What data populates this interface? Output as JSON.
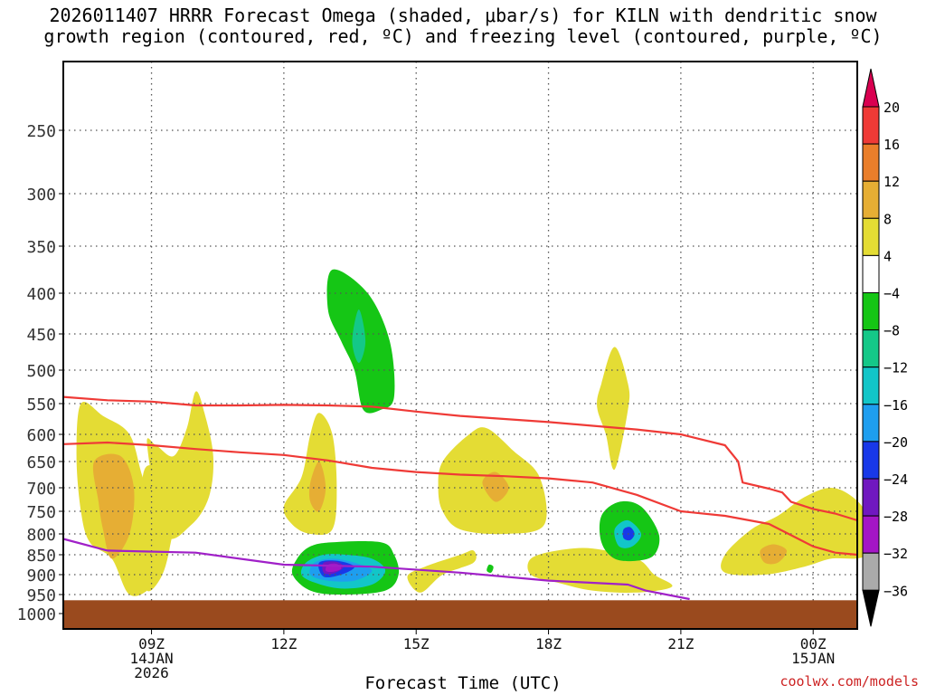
{
  "title": {
    "line1": "2026011407 HRRR Forecast Omega (shaded, μbar/s) for KILN with dendritic snow",
    "line2": "growth region (contoured, red, ºC) and freezing level (contoured, purple, ºC)"
  },
  "credit": "coolwx.com/models",
  "chart_data": {
    "type": "heatmap",
    "title": "2026011407 HRRR Forecast Omega (shaded, μbar/s) for KILN with dendritic snow growth region (contoured, red, ºC) and freezing level (contoured, purple, ºC)",
    "xlabel": "Forecast Time (UTC)",
    "ylabel": "",
    "x_unit": "hours after 07Z 14JAN",
    "xlim": [
      0,
      18
    ],
    "ylim_hpa": [
      1000,
      200
    ],
    "y_ticks": [
      250,
      300,
      350,
      400,
      450,
      500,
      550,
      600,
      650,
      700,
      750,
      800,
      850,
      900,
      950,
      1000
    ],
    "x_ticks": [
      {
        "x": 2,
        "label": "09Z",
        "sub": "14JAN",
        "sub2": "2026"
      },
      {
        "x": 5,
        "label": "12Z",
        "sub": "",
        "sub2": ""
      },
      {
        "x": 8,
        "label": "15Z",
        "sub": "",
        "sub2": ""
      },
      {
        "x": 11,
        "label": "18Z",
        "sub": "",
        "sub2": ""
      },
      {
        "x": 14,
        "label": "21Z",
        "sub": "",
        "sub2": ""
      },
      {
        "x": 17,
        "label": "00Z",
        "sub": "15JAN",
        "sub2": ""
      }
    ],
    "colorbar": {
      "levels": [
        "20",
        "16",
        "12",
        "8",
        "4",
        "−4",
        "−8",
        "−12",
        "−16",
        "−20",
        "−24",
        "−28",
        "−32",
        "−36"
      ],
      "colors": [
        "#d90050",
        "#ef3a36",
        "#ea7e2a",
        "#e6ae34",
        "#e4dc34",
        "#ffffff",
        "#15c615",
        "#14c888",
        "#12c6c8",
        "#1e9eef",
        "#1838e8",
        "#7018c0",
        "#a416c6",
        "#aaaaaa",
        "#000000"
      ]
    },
    "omega_features": [
      {
        "p": [
          [
            0.4,
            550
          ],
          [
            0.9,
            570
          ],
          [
            1.5,
            600
          ],
          [
            1.8,
            680
          ],
          [
            2.2,
            780
          ],
          [
            2.3,
            860
          ],
          [
            2,
            930
          ],
          [
            1.5,
            950
          ],
          [
            1.1,
            860
          ],
          [
            0.6,
            820
          ],
          [
            0.4,
            750
          ],
          [
            0.3,
            640
          ]
        ],
        "color": "#e4dc34"
      },
      {
        "p": [
          [
            0.7,
            650
          ],
          [
            1.3,
            640
          ],
          [
            1.6,
            700
          ],
          [
            1.5,
            800
          ],
          [
            1.1,
            860
          ],
          [
            0.9,
            790
          ],
          [
            0.8,
            730
          ]
        ],
        "color": "#e6ae34"
      },
      {
        "p": [
          [
            1.9,
            620
          ],
          [
            2.3,
            800
          ],
          [
            2.9,
            780
          ],
          [
            3.3,
            720
          ],
          [
            3.4,
            640
          ],
          [
            3.2,
            565
          ],
          [
            3,
            532
          ],
          [
            2.8,
            590
          ],
          [
            2.5,
            640
          ],
          [
            2.1,
            620
          ]
        ],
        "color": "#e4dc34"
      },
      {
        "p": [
          [
            1.8,
            680
          ],
          [
            2.1,
            660
          ],
          [
            2.6,
            700
          ],
          [
            2.4,
            840
          ],
          [
            2.2,
            910
          ],
          [
            1.9,
            940
          ],
          [
            1.8,
            860
          ]
        ],
        "color": "#e4dc34"
      },
      {
        "p": [
          [
            5,
            740
          ],
          [
            5.4,
            680
          ],
          [
            5.6,
            600
          ],
          [
            5.8,
            565
          ],
          [
            6.1,
            600
          ],
          [
            6.2,
            700
          ],
          [
            6.1,
            790
          ],
          [
            5.6,
            800
          ],
          [
            5.2,
            780
          ]
        ],
        "color": "#e4dc34"
      },
      {
        "p": [
          [
            5.6,
            690
          ],
          [
            5.8,
            650
          ],
          [
            5.95,
            700
          ],
          [
            5.8,
            750
          ],
          [
            5.6,
            730
          ]
        ],
        "color": "#e6ae34"
      },
      {
        "p": [
          [
            6.1,
            375
          ],
          [
            6.9,
            400
          ],
          [
            7.4,
            460
          ],
          [
            7.5,
            540
          ],
          [
            7.2,
            560
          ],
          [
            6.8,
            560
          ],
          [
            6.6,
            500
          ],
          [
            6.3,
            460
          ],
          [
            6,
            420
          ]
        ],
        "color": "#15c615"
      },
      {
        "p": [
          [
            6.7,
            420
          ],
          [
            6.85,
            460
          ],
          [
            6.7,
            490
          ],
          [
            6.55,
            460
          ]
        ],
        "color": "#14c888"
      },
      {
        "p": [
          [
            5.3,
            860
          ],
          [
            5.6,
            830
          ],
          [
            6.1,
            820
          ],
          [
            7.2,
            820
          ],
          [
            7.5,
            850
          ],
          [
            7.6,
            900
          ],
          [
            7.3,
            940
          ],
          [
            6.3,
            950
          ],
          [
            5.6,
            940
          ],
          [
            5.2,
            900
          ]
        ],
        "color": "#15c615"
      },
      {
        "p": [
          [
            5.5,
            870
          ],
          [
            5.9,
            850
          ],
          [
            6.4,
            850
          ],
          [
            7,
            860
          ],
          [
            7.3,
            890
          ],
          [
            7,
            925
          ],
          [
            6.3,
            935
          ],
          [
            5.7,
            920
          ],
          [
            5.4,
            900
          ]
        ],
        "color": "#12c6c8"
      },
      {
        "p": [
          [
            5.7,
            870
          ],
          [
            6.1,
            860
          ],
          [
            6.6,
            870
          ],
          [
            7,
            890
          ],
          [
            6.6,
            915
          ],
          [
            6,
            915
          ],
          [
            5.6,
            900
          ]
        ],
        "color": "#1e9eef"
      },
      {
        "p": [
          [
            5.8,
            870
          ],
          [
            6.2,
            865
          ],
          [
            6.6,
            880
          ],
          [
            6.3,
            900
          ],
          [
            5.9,
            905
          ]
        ],
        "color": "#1838e8"
      },
      {
        "p": [
          [
            5.9,
            870
          ],
          [
            6.2,
            868
          ],
          [
            6.35,
            882
          ],
          [
            6.1,
            898
          ],
          [
            5.9,
            895
          ]
        ],
        "color": "#7018c0"
      },
      {
        "p": [
          [
            6,
            875
          ],
          [
            6.2,
            873
          ],
          [
            6.3,
            885
          ],
          [
            6.1,
            893
          ],
          [
            5.95,
            890
          ]
        ],
        "color": "#a416c6"
      },
      {
        "p": [
          [
            8.6,
            650
          ],
          [
            9.2,
            600
          ],
          [
            9.6,
            590
          ],
          [
            10.2,
            630
          ],
          [
            10.8,
            680
          ],
          [
            10.9,
            780
          ],
          [
            10,
            800
          ],
          [
            9,
            790
          ],
          [
            8.6,
            750
          ],
          [
            8.5,
            700
          ]
        ],
        "color": "#e4dc34"
      },
      {
        "p": [
          [
            9.5,
            690
          ],
          [
            9.8,
            670
          ],
          [
            10.1,
            700
          ],
          [
            9.8,
            730
          ]
        ],
        "color": "#e6ae34"
      },
      {
        "p": [
          [
            7.8,
            905
          ],
          [
            8.2,
            880
          ],
          [
            9,
            850
          ],
          [
            9.3,
            840
          ],
          [
            9.3,
            870
          ],
          [
            8.6,
            900
          ],
          [
            8.1,
            945
          ]
        ],
        "color": "#e4dc34"
      },
      {
        "p": [
          [
            9.65,
            875
          ],
          [
            9.75,
            880
          ],
          [
            9.7,
            895
          ],
          [
            9.6,
            890
          ]
        ],
        "color": "#15c615"
      },
      {
        "p": [
          [
            10.6,
            860
          ],
          [
            11.2,
            840
          ],
          [
            12,
            835
          ],
          [
            13,
            860
          ],
          [
            13.4,
            900
          ],
          [
            13.8,
            930
          ],
          [
            13,
            945
          ],
          [
            12,
            940
          ],
          [
            11.2,
            920
          ],
          [
            10.6,
            900
          ]
        ],
        "color": "#e4dc34"
      },
      {
        "p": [
          [
            12.2,
            520
          ],
          [
            12.5,
            468
          ],
          [
            12.8,
            520
          ],
          [
            12.8,
            560
          ],
          [
            12.5,
            665
          ],
          [
            12.3,
            600
          ],
          [
            12.1,
            555
          ]
        ],
        "color": "#e4dc34"
      },
      {
        "p": [
          [
            12.2,
            760
          ],
          [
            12.6,
            730
          ],
          [
            13.1,
            740
          ],
          [
            13.5,
            800
          ],
          [
            13.4,
            850
          ],
          [
            13,
            865
          ],
          [
            12.5,
            860
          ],
          [
            12.2,
            820
          ]
        ],
        "color": "#15c615"
      },
      {
        "p": [
          [
            12.5,
            790
          ],
          [
            12.8,
            770
          ],
          [
            13.1,
            800
          ],
          [
            12.9,
            830
          ],
          [
            12.6,
            830
          ]
        ],
        "color": "#12c6c8"
      },
      {
        "p": [
          [
            12.7,
            790
          ],
          [
            12.85,
            785
          ],
          [
            12.95,
            800
          ],
          [
            12.85,
            815
          ],
          [
            12.7,
            810
          ]
        ],
        "color": "#1838e8"
      },
      {
        "p": [
          [
            15,
            850
          ],
          [
            15.6,
            790
          ],
          [
            16.2,
            760
          ],
          [
            16.8,
            720
          ],
          [
            17.4,
            700
          ],
          [
            17.9,
            720
          ],
          [
            18.2,
            760
          ],
          [
            18.2,
            850
          ],
          [
            17.4,
            860
          ],
          [
            16.8,
            880
          ],
          [
            15.9,
            900
          ],
          [
            15,
            895
          ]
        ],
        "color": "#e4dc34"
      },
      {
        "p": [
          [
            15.8,
            840
          ],
          [
            16.1,
            825
          ],
          [
            16.4,
            840
          ],
          [
            16.2,
            870
          ],
          [
            15.9,
            870
          ]
        ],
        "color": "#e6ae34"
      }
    ],
    "series": [
      {
        "name": "dendritic growth top (-12ºC)",
        "color": "#ef3a36",
        "x": [
          0,
          1,
          2,
          3,
          4,
          5,
          6,
          7,
          8,
          9,
          10,
          11,
          12,
          13,
          14,
          15,
          15.3,
          15.4,
          16,
          16.3,
          16.5,
          17,
          17.5,
          18
        ],
        "p": [
          540,
          545,
          547,
          553,
          553,
          552,
          553,
          555,
          563,
          570,
          575,
          580,
          586,
          592,
          600,
          620,
          650,
          690,
          702,
          710,
          730,
          745,
          755,
          770
        ]
      },
      {
        "name": "dendritic growth bottom (-18ºC)",
        "color": "#ef3a36",
        "x": [
          0,
          1,
          2,
          3,
          4,
          5,
          6,
          7,
          8,
          9,
          10,
          11,
          12,
          13,
          14,
          15,
          16,
          16.5,
          17,
          17.5,
          18
        ],
        "p": [
          618,
          615,
          620,
          627,
          633,
          638,
          648,
          662,
          670,
          675,
          678,
          682,
          690,
          715,
          750,
          760,
          778,
          803,
          830,
          845,
          850
        ]
      },
      {
        "name": "freezing level (0ºC)",
        "color": "#a020c8",
        "x": [
          0,
          1,
          3,
          5,
          7,
          9,
          11,
          12.8,
          13.2,
          14.2
        ],
        "p": [
          812,
          840,
          845,
          875,
          880,
          895,
          915,
          925,
          940,
          962
        ]
      }
    ]
  }
}
